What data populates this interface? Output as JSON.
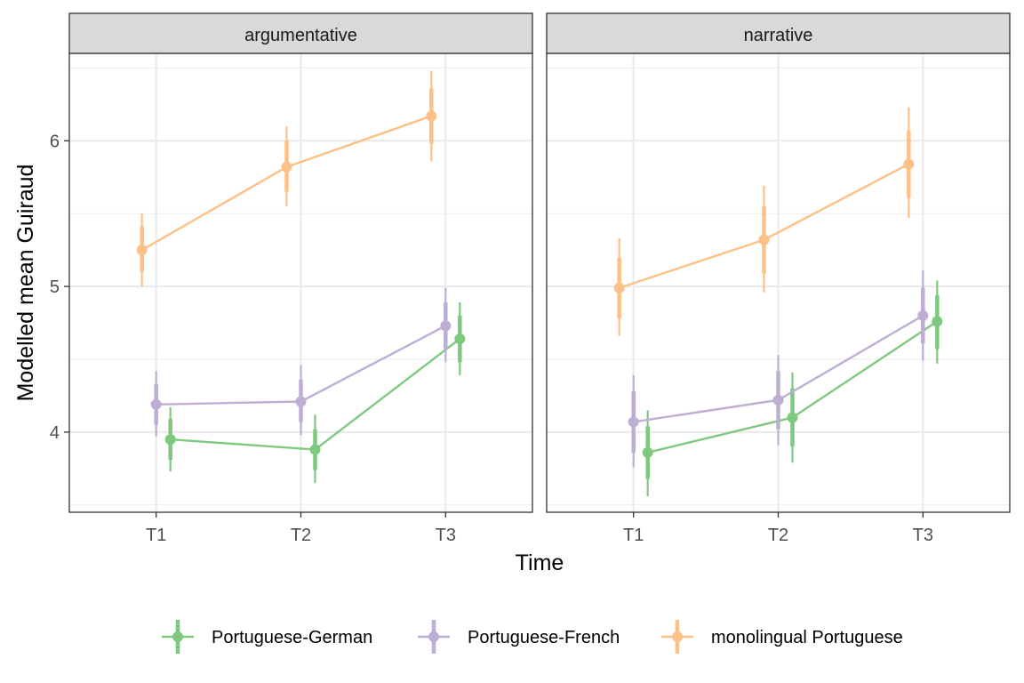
{
  "chart_data": {
    "type": "line",
    "facets": [
      "argumentative",
      "narrative"
    ],
    "categories": [
      "T1",
      "T2",
      "T3"
    ],
    "xlabel": "Time",
    "ylabel": "Modelled mean Guiraud",
    "ylim": [
      3.45,
      6.6
    ],
    "yticks": [
      4,
      5,
      6
    ],
    "grid": true,
    "legend_position": "bottom",
    "series": [
      {
        "name": "Portuguese-German",
        "color": "#7fc97f",
        "panels": [
          {
            "mean": [
              3.95,
              3.88,
              4.64
            ],
            "inner": [
              [
                3.81,
                4.09
              ],
              [
                3.74,
                4.02
              ],
              [
                4.48,
                4.8
              ]
            ],
            "outer": [
              [
                3.73,
                4.17
              ],
              [
                3.65,
                4.12
              ],
              [
                4.39,
                4.89
              ]
            ]
          },
          {
            "mean": [
              3.86,
              4.1,
              4.76
            ],
            "inner": [
              [
                3.68,
                4.04
              ],
              [
                3.9,
                4.3
              ],
              [
                4.57,
                4.94
              ]
            ],
            "outer": [
              [
                3.56,
                4.15
              ],
              [
                3.79,
                4.41
              ],
              [
                4.47,
                5.04
              ]
            ]
          }
        ]
      },
      {
        "name": "Portuguese-French",
        "color": "#beaed4",
        "panels": [
          {
            "mean": [
              4.19,
              4.21,
              4.73
            ],
            "inner": [
              [
                4.05,
                4.33
              ],
              [
                4.07,
                4.36
              ],
              [
                4.57,
                4.89
              ]
            ],
            "outer": [
              [
                3.97,
                4.42
              ],
              [
                3.98,
                4.46
              ],
              [
                4.48,
                4.99
              ]
            ]
          },
          {
            "mean": [
              4.07,
              4.22,
              4.8
            ],
            "inner": [
              [
                3.86,
                4.28
              ],
              [
                4.02,
                4.42
              ],
              [
                4.61,
                4.99
              ]
            ],
            "outer": [
              [
                3.76,
                4.39
              ],
              [
                3.91,
                4.53
              ],
              [
                4.49,
                5.11
              ]
            ]
          }
        ]
      },
      {
        "name": "monolingual Portuguese",
        "color": "#fdc086",
        "panels": [
          {
            "mean": [
              5.25,
              5.82,
              6.17
            ],
            "inner": [
              [
                5.1,
                5.41
              ],
              [
                5.65,
                6.0
              ],
              [
                5.98,
                6.36
              ]
            ],
            "outer": [
              [
                5.0,
                5.5
              ],
              [
                5.55,
                6.1
              ],
              [
                5.86,
                6.48
              ]
            ]
          },
          {
            "mean": [
              4.99,
              5.32,
              5.84
            ],
            "inner": [
              [
                4.78,
                5.2
              ],
              [
                5.09,
                5.55
              ],
              [
                5.61,
                6.07
              ]
            ],
            "outer": [
              [
                4.66,
                5.33
              ],
              [
                4.96,
                5.69
              ],
              [
                5.47,
                6.23
              ]
            ]
          }
        ]
      }
    ]
  }
}
